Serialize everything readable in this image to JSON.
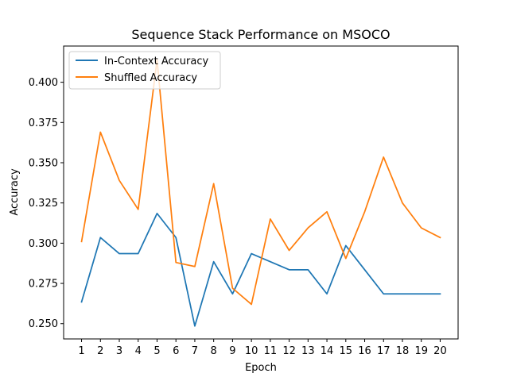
{
  "chart_data": {
    "type": "line",
    "title": "Sequence Stack Performance on MSOCO",
    "xlabel": "Epoch",
    "ylabel": "Accuracy",
    "x": [
      1,
      2,
      3,
      4,
      5,
      6,
      7,
      8,
      9,
      10,
      11,
      12,
      13,
      14,
      15,
      16,
      17,
      18,
      19,
      20
    ],
    "xlim": [
      0.05,
      20.95
    ],
    "ylim": [
      0.2405,
      0.4225
    ],
    "yticks": [
      0.25,
      0.275,
      0.3,
      0.325,
      0.35,
      0.375,
      0.4
    ],
    "ytick_labels": [
      "0.250",
      "0.275",
      "0.300",
      "0.325",
      "0.350",
      "0.375",
      "0.400"
    ],
    "grid": false,
    "legend_position": "top-left",
    "series": [
      {
        "name": "In-Context Accuracy",
        "color": "#1f77b4",
        "values": [
          0.2635,
          0.3035,
          0.2935,
          0.2935,
          0.3185,
          0.3035,
          0.2485,
          0.2885,
          0.2685,
          0.2935,
          0.2885,
          0.2835,
          0.2835,
          0.2685,
          0.2985,
          0.2835,
          0.2685,
          0.2685,
          0.2685,
          0.2685
        ]
      },
      {
        "name": "Shuffled Accuracy",
        "color": "#ff7f0e",
        "values": [
          0.301,
          0.369,
          0.339,
          0.321,
          0.414,
          0.288,
          0.2855,
          0.337,
          0.272,
          0.262,
          0.315,
          0.2955,
          0.3095,
          0.3195,
          0.2905,
          0.3195,
          0.3535,
          0.325,
          0.3095,
          0.3035
        ]
      }
    ]
  }
}
